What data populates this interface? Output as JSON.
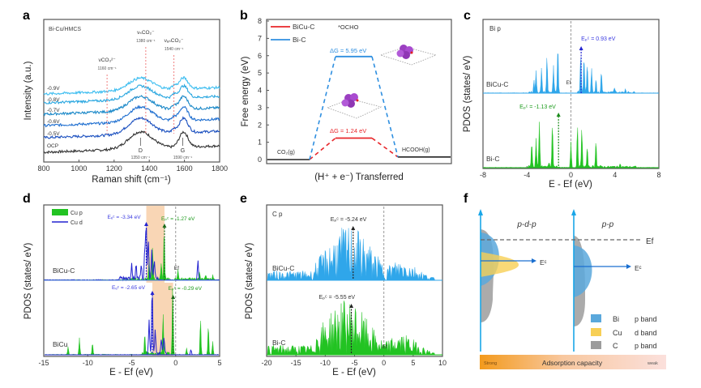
{
  "chart_data": [
    {
      "panel": "a",
      "type": "line",
      "title": "Bi-Cu/HMCS",
      "xlabel": "Raman shift (cm⁻¹)",
      "ylabel": "Intensity (a.u.)",
      "xlim": [
        800,
        1800
      ],
      "xticks": [
        "800",
        "1000",
        "1200",
        "1400",
        "1600",
        "1800"
      ],
      "series": [
        {
          "name": "OCP",
          "color": "#333333"
        },
        {
          "name": "-0.5V",
          "color": "#1a4fbf"
        },
        {
          "name": "-0.6V",
          "color": "#1f6fd0"
        },
        {
          "name": "-0.7V",
          "color": "#1a88c8"
        },
        {
          "name": "-0.8V",
          "color": "#2aa7e0"
        },
        {
          "name": "-0.9V",
          "color": "#3cbdf0"
        }
      ],
      "peaks": [
        {
          "label": "D",
          "position": 1350,
          "note": "1350 cm⁻¹"
        },
        {
          "label": "G",
          "position": 1590,
          "note": "1590 cm⁻¹"
        }
      ],
      "annotations": [
        {
          "label": "νCO₃²⁻",
          "position": 1160,
          "note": "1160 cm⁻¹"
        },
        {
          "label": "νₛCO₂⁻",
          "position": 1380,
          "note": "1380 cm⁻¹"
        },
        {
          "label": "νₐₛCO₂⁻",
          "position": 1540,
          "note": "1540 cm⁻¹"
        }
      ]
    },
    {
      "panel": "b",
      "type": "line",
      "xlabel": "(H⁺ + e⁻) Transferred",
      "ylabel": "Free energy (eV)",
      "ylim": [
        0,
        8
      ],
      "yticks": [
        "0",
        "1",
        "2",
        "3",
        "4",
        "5",
        "6",
        "7",
        "8"
      ],
      "states": [
        "CO₂(g)",
        "*OCHO",
        "HCOOH(g)"
      ],
      "series": [
        {
          "name": "BiCu-C",
          "color": "#e8262a",
          "values": [
            0,
            1.24,
            0.15
          ],
          "delta_g": "ΔG = 1.24 eV"
        },
        {
          "name": "Bi-C",
          "color": "#2f8fe0",
          "values": [
            0,
            5.95,
            0.15
          ],
          "delta_g": "ΔG = 5.95 eV"
        }
      ],
      "annotations": [
        "*OCHO",
        "CO₂(g)",
        "HCOOH(g)"
      ]
    },
    {
      "panel": "c",
      "type": "area",
      "title": "Bi p",
      "xlabel": "E - Ef (eV)",
      "ylabel": "PDOS  (states/ eV)",
      "xlim": [
        -8,
        8
      ],
      "xticks": [
        "-8",
        "-4",
        "0",
        "4",
        "8"
      ],
      "series": [
        {
          "name": "BiCu-C",
          "color": "#2fa6ea",
          "epc": 0.93,
          "epc_label": "Eₚᶜ = 0.93 eV",
          "peaks": [
            [
              -3.4,
              0.25
            ],
            [
              -3.2,
              0.45
            ],
            [
              -2.7,
              0.5
            ],
            [
              -2.2,
              0.75
            ],
            [
              -1.6,
              0.55
            ],
            [
              -1.2,
              1.0
            ],
            [
              0.9,
              0.85
            ],
            [
              1.2,
              0.78
            ],
            [
              1.5,
              0.62
            ],
            [
              1.9,
              0.5
            ],
            [
              2.3,
              0.3
            ],
            [
              2.8,
              0.45
            ],
            [
              4.0,
              0.1
            ],
            [
              5.0,
              0.08
            ]
          ]
        },
        {
          "name": "Bi-C",
          "color": "#22c322",
          "epc": -1.13,
          "epc_label": "Eₚᶜ = -1.13 eV",
          "peaks": [
            [
              -3.6,
              0.55
            ],
            [
              -3.2,
              0.6
            ],
            [
              -2.9,
              0.95
            ],
            [
              -2.0,
              0.1
            ],
            [
              -1.7,
              0.92
            ],
            [
              0.0,
              0.55
            ],
            [
              0.6,
              0.85
            ],
            [
              1.0,
              0.8
            ],
            [
              1.5,
              0.4
            ],
            [
              2.3,
              0.58
            ],
            [
              4.5,
              0.08
            ]
          ]
        }
      ],
      "fermi_label": "Ef"
    },
    {
      "panel": "d",
      "type": "area",
      "xlabel": "E - Ef (eV)",
      "ylabel": "PDOS  (states/ eV)",
      "xlim": [
        -15,
        5
      ],
      "xticks": [
        "-15",
        "-10",
        "-5",
        "0",
        "5"
      ],
      "legend": [
        {
          "name": "Cu p",
          "color": "#22c322"
        },
        {
          "name": "Cu d",
          "color": "#2323d0"
        }
      ],
      "series": [
        {
          "name": "BiCu-C",
          "edc": -3.34,
          "edc_label": "Eₑᶜ = -3.34 eV",
          "epc": -1.27,
          "epc_label": "Eₚᶜ = -1.27 eV"
        },
        {
          "name": "BiCu",
          "edc": -2.65,
          "edc_label": "Eₑᶜ = -2.65 eV",
          "epc": -0.29,
          "epc_label": "Eₚᶜ = -0.29 eV"
        }
      ],
      "fermi_label": "Ef"
    },
    {
      "panel": "e",
      "type": "area",
      "title": "C p",
      "xlabel": "E - Ef (eV)",
      "ylabel": "PDOS  (states/ eV)",
      "xlim": [
        -20,
        10
      ],
      "xticks": [
        "-20",
        "-15",
        "-10",
        "-5",
        "0",
        "5",
        "10"
      ],
      "series": [
        {
          "name": "BiCu-C",
          "color": "#2fa6ea",
          "epc": -5.24,
          "epc_label": "Eₚᶜ = -5.24 eV"
        },
        {
          "name": "Bi-C",
          "color": "#22c322",
          "epc": -5.55,
          "epc_label": "Eₚᶜ = -5.55 eV"
        }
      ],
      "fermi_label": "Ef"
    },
    {
      "panel": "f",
      "type": "diagram",
      "columns": [
        "p-d-p",
        "p-p"
      ],
      "fermi_label": "Ef",
      "center_label": "Eᶜ",
      "legend": [
        {
          "element": "Bi",
          "band": "p band",
          "color": "#5aa8dc"
        },
        {
          "element": "Cu",
          "band": "d band",
          "color": "#f7cf55"
        },
        {
          "element": "C",
          "band": "p band",
          "color": "#9c9c9c"
        }
      ],
      "scale": {
        "label": "Adsorption capacity",
        "left": "Strong",
        "right": "weak"
      }
    }
  ],
  "panel_labels": [
    "a",
    "b",
    "c",
    "d",
    "e",
    "f"
  ]
}
